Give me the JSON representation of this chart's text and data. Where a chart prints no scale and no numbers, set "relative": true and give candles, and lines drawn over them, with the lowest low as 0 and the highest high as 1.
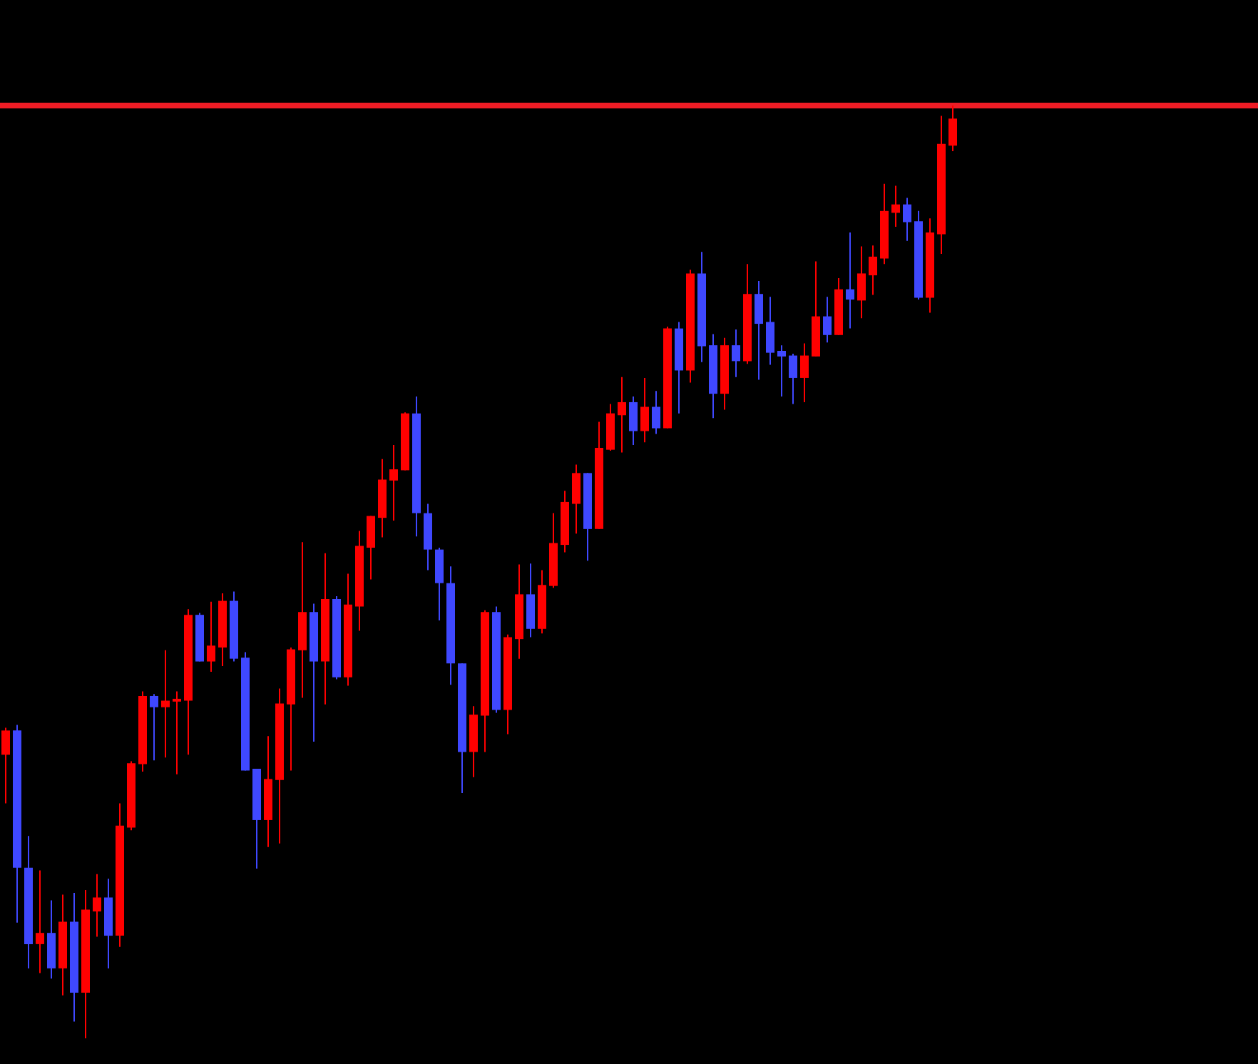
{
  "chart_data": {
    "type": "candlestick",
    "relative": true,
    "categories": [
      null,
      null,
      null,
      null,
      null,
      null,
      null,
      null,
      null,
      null,
      null,
      null,
      null,
      null,
      null,
      null,
      null,
      null,
      null,
      null,
      null,
      null,
      null,
      null,
      null,
      null,
      null,
      null,
      null,
      null,
      null,
      null,
      null,
      null,
      null,
      null,
      null,
      null,
      null,
      null,
      null,
      null,
      null,
      null,
      null,
      null,
      null,
      null,
      null,
      null,
      null,
      null,
      null,
      null,
      null,
      null,
      null,
      null,
      null,
      null,
      null,
      null,
      null,
      null,
      null,
      null,
      null,
      null,
      null,
      null,
      null,
      null,
      null,
      null,
      null,
      null,
      null,
      null,
      null,
      null,
      null,
      null,
      null,
      null
    ],
    "ohlc": [
      [
        0.304,
        0.333,
        0.252,
        0.33
      ],
      [
        0.33,
        0.336,
        0.124,
        0.183
      ],
      [
        0.183,
        0.217,
        0.075,
        0.101
      ],
      [
        0.101,
        0.18,
        0.07,
        0.113
      ],
      [
        0.113,
        0.148,
        0.064,
        0.075
      ],
      [
        0.075,
        0.154,
        0.046,
        0.125
      ],
      [
        0.125,
        0.156,
        0.018,
        0.049
      ],
      [
        0.049,
        0.159,
        0,
        0.138
      ],
      [
        0.136,
        0.176,
        0.109,
        0.151
      ],
      [
        0.151,
        0.171,
        0.075,
        0.11
      ],
      [
        0.11,
        0.252,
        0.098,
        0.228
      ],
      [
        0.226,
        0.297,
        0.223,
        0.295
      ],
      [
        0.294,
        0.372,
        0.286,
        0.367
      ],
      [
        0.367,
        0.369,
        0.298,
        0.355
      ],
      [
        0.355,
        0.416,
        0.301,
        0.362
      ],
      [
        0.361,
        0.372,
        0.283,
        0.364
      ],
      [
        0.362,
        0.46,
        0.304,
        0.454
      ],
      [
        0.454,
        0.456,
        0.404,
        0.404
      ],
      [
        0.404,
        0.468,
        0.393,
        0.421
      ],
      [
        0.419,
        0.477,
        0.399,
        0.469
      ],
      [
        0.469,
        0.479,
        0.404,
        0.407
      ],
      [
        0.408,
        0.414,
        0.287,
        0.287
      ],
      [
        0.289,
        0.289,
        0.182,
        0.234
      ],
      [
        0.234,
        0.324,
        0.205,
        0.278
      ],
      [
        0.277,
        0.375,
        0.209,
        0.359
      ],
      [
        0.358,
        0.419,
        0.287,
        0.417
      ],
      [
        0.416,
        0.532,
        0.365,
        0.457
      ],
      [
        0.457,
        0.466,
        0.318,
        0.404
      ],
      [
        0.404,
        0.52,
        0.358,
        0.471
      ],
      [
        0.471,
        0.474,
        0.385,
        0.387
      ],
      [
        0.387,
        0.498,
        0.378,
        0.465
      ],
      [
        0.463,
        0.544,
        0.437,
        0.528
      ],
      [
        0.526,
        0.56,
        0.492,
        0.56
      ],
      [
        0.558,
        0.621,
        0.537,
        0.599
      ],
      [
        0.598,
        0.636,
        0.555,
        0.61
      ],
      [
        0.609,
        0.671,
        0.609,
        0.67
      ],
      [
        0.67,
        0.688,
        0.538,
        0.563
      ],
      [
        0.563,
        0.573,
        0.502,
        0.524
      ],
      [
        0.524,
        0.526,
        0.448,
        0.488
      ],
      [
        0.488,
        0.506,
        0.379,
        0.402
      ],
      [
        0.402,
        0.402,
        0.263,
        0.307
      ],
      [
        0.307,
        0.356,
        0.28,
        0.347
      ],
      [
        0.346,
        0.459,
        0.307,
        0.457
      ],
      [
        0.457,
        0.463,
        0.349,
        0.352
      ],
      [
        0.352,
        0.433,
        0.326,
        0.43
      ],
      [
        0.428,
        0.508,
        0.407,
        0.476
      ],
      [
        0.476,
        0.509,
        0.43,
        0.439
      ],
      [
        0.439,
        0.502,
        0.434,
        0.486
      ],
      [
        0.485,
        0.563,
        0.483,
        0.531
      ],
      [
        0.529,
        0.587,
        0.521,
        0.575
      ],
      [
        0.573,
        0.615,
        0.541,
        0.606
      ],
      [
        0.606,
        0.606,
        0.512,
        0.546
      ],
      [
        0.546,
        0.661,
        0.546,
        0.633
      ],
      [
        0.631,
        0.68,
        0.63,
        0.67
      ],
      [
        0.668,
        0.709,
        0.628,
        0.682
      ],
      [
        0.682,
        0.688,
        0.636,
        0.651
      ],
      [
        0.651,
        0.708,
        0.639,
        0.677
      ],
      [
        0.677,
        0.694,
        0.648,
        0.654
      ],
      [
        0.654,
        0.763,
        0.654,
        0.761
      ],
      [
        0.761,
        0.768,
        0.67,
        0.716
      ],
      [
        0.716,
        0.824,
        0.703,
        0.82
      ],
      [
        0.82,
        0.843,
        0.725,
        0.742
      ],
      [
        0.743,
        0.755,
        0.665,
        0.691
      ],
      [
        0.691,
        0.751,
        0.674,
        0.743
      ],
      [
        0.743,
        0.76,
        0.709,
        0.726
      ],
      [
        0.726,
        0.83,
        0.723,
        0.798
      ],
      [
        0.798,
        0.812,
        0.706,
        0.766
      ],
      [
        0.768,
        0.795,
        0.722,
        0.735
      ],
      [
        0.737,
        0.743,
        0.688,
        0.731
      ],
      [
        0.732,
        0.734,
        0.68,
        0.708
      ],
      [
        0.708,
        0.745,
        0.682,
        0.732
      ],
      [
        0.731,
        0.833,
        0.731,
        0.774
      ],
      [
        0.774,
        0.795,
        0.746,
        0.754
      ],
      [
        0.754,
        0.815,
        0.754,
        0.803
      ],
      [
        0.803,
        0.864,
        0.761,
        0.792
      ],
      [
        0.791,
        0.849,
        0.772,
        0.82
      ],
      [
        0.818,
        0.85,
        0.797,
        0.838
      ],
      [
        0.836,
        0.916,
        0.83,
        0.887
      ],
      [
        0.885,
        0.914,
        0.87,
        0.894
      ],
      [
        0.894,
        0.901,
        0.855,
        0.875
      ],
      [
        0.876,
        0.887,
        0.792,
        0.794
      ],
      [
        0.794,
        0.879,
        0.778,
        0.864
      ],
      [
        0.862,
        0.989,
        0.841,
        0.959
      ],
      [
        0.957,
        1,
        0.951,
        0.986
      ]
    ],
    "colors": [
      "#ff0000",
      "#3f48ff",
      "#3f48ff",
      "#ff0000",
      "#3f48ff",
      "#ff0000",
      "#3f48ff",
      "#ff0000",
      "#ff0000",
      "#3f48ff",
      "#ff0000",
      "#ff0000",
      "#ff0000",
      "#3f48ff",
      "#ff0000",
      "#ff0000",
      "#ff0000",
      "#3f48ff",
      "#ff0000",
      "#ff0000",
      "#3f48ff",
      "#3f48ff",
      "#3f48ff",
      "#ff0000",
      "#ff0000",
      "#ff0000",
      "#ff0000",
      "#3f48ff",
      "#ff0000",
      "#3f48ff",
      "#ff0000",
      "#ff0000",
      "#ff0000",
      "#ff0000",
      "#ff0000",
      "#ff0000",
      "#3f48ff",
      "#3f48ff",
      "#3f48ff",
      "#3f48ff",
      "#3f48ff",
      "#ff0000",
      "#ff0000",
      "#3f48ff",
      "#ff0000",
      "#ff0000",
      "#3f48ff",
      "#ff0000",
      "#ff0000",
      "#ff0000",
      "#ff0000",
      "#3f48ff",
      "#ff0000",
      "#ff0000",
      "#ff0000",
      "#3f48ff",
      "#ff0000",
      "#3f48ff",
      "#ff0000",
      "#3f48ff",
      "#ff0000",
      "#3f48ff",
      "#3f48ff",
      "#ff0000",
      "#3f48ff",
      "#ff0000",
      "#3f48ff",
      "#3f48ff",
      "#3f48ff",
      "#3f48ff",
      "#ff0000",
      "#ff0000",
      "#3f48ff",
      "#ff0000",
      "#3f48ff",
      "#ff0000",
      "#ff0000",
      "#ff0000",
      "#ff0000",
      "#3f48ff",
      "#3f48ff",
      "#ff0000",
      "#ff0000",
      "#ff0000"
    ],
    "ref_lines": [
      {
        "axis": "y",
        "value": 1,
        "color": "#ee1c25"
      }
    ]
  }
}
